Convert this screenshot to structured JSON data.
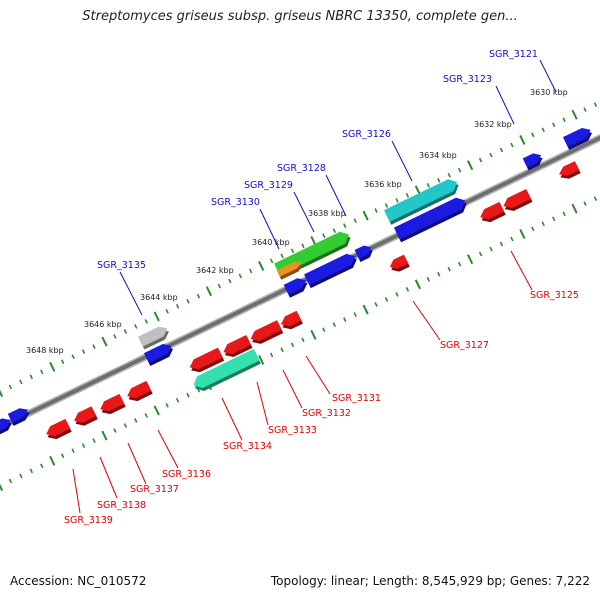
{
  "title": "Streptomyces griseus subsp. griseus NBRC 13350, complete gen...",
  "footer": {
    "accession": "Accession: NC_010572",
    "topology": "Topology: linear; Length: 8,545,929 bp; Genes: 7,222"
  },
  "colors": {
    "forward_label": "#1010c0",
    "reverse_label": "#e00000",
    "backbone": "#777777",
    "ticks": "#2a8a2a",
    "gene_blue": "#1a1ae0",
    "gene_red": "#e81818",
    "gene_cyan": "#22c8c8",
    "gene_green": "#33cc33",
    "gene_teal": "#33e0b0",
    "gene_gray": "#c0c0c0",
    "gene_orange": "#f09020"
  },
  "scale_labels": [
    "3630 kbp",
    "3632 kbp",
    "3634 kbp",
    "3636 kbp",
    "3638 kbp",
    "3640 kbp",
    "3642 kbp",
    "3644 kbp",
    "3646 kbp",
    "3648 kbp"
  ],
  "forward_genes": [
    "SGR_3121",
    "SGR_3123",
    "SGR_3126",
    "SGR_3128",
    "SGR_3129",
    "SGR_3130",
    "SGR_3135"
  ],
  "reverse_genes": [
    "SGR_3125",
    "SGR_3127",
    "SGR_3131",
    "SGR_3132",
    "SGR_3133",
    "SGR_3134",
    "SGR_3136",
    "SGR_3137",
    "SGR_3138",
    "SGR_3139"
  ]
}
